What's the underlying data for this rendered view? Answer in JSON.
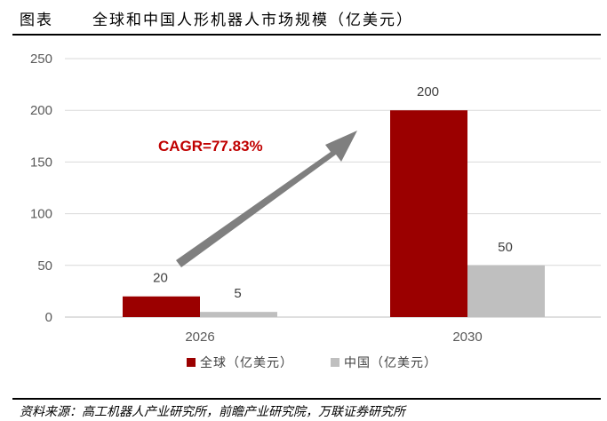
{
  "header": {
    "label": "图表",
    "title": "全球和中国人形机器人市场规模（亿美元）"
  },
  "source": "资料来源：高工机器人产业研究所，前瞻产业研究院，万联证券研究所",
  "colors": {
    "global": "#9b0000",
    "china": "#bfbfbf",
    "arrow": "#7f7f7f",
    "cagr": "#c00000"
  },
  "chart_data": {
    "type": "bar",
    "categories": [
      "2026",
      "2030"
    ],
    "series": [
      {
        "name": "全球（亿美元）",
        "values": [
          20,
          200
        ],
        "color": "#9b0000"
      },
      {
        "name": "中国（亿美元）",
        "values": [
          5,
          50
        ],
        "color": "#bfbfbf"
      }
    ],
    "ylim": [
      0,
      250
    ],
    "yticks": [
      0,
      50,
      100,
      150,
      200,
      250
    ],
    "grid": true,
    "legend": "bottom",
    "annotation": "CAGR=77.83%"
  }
}
